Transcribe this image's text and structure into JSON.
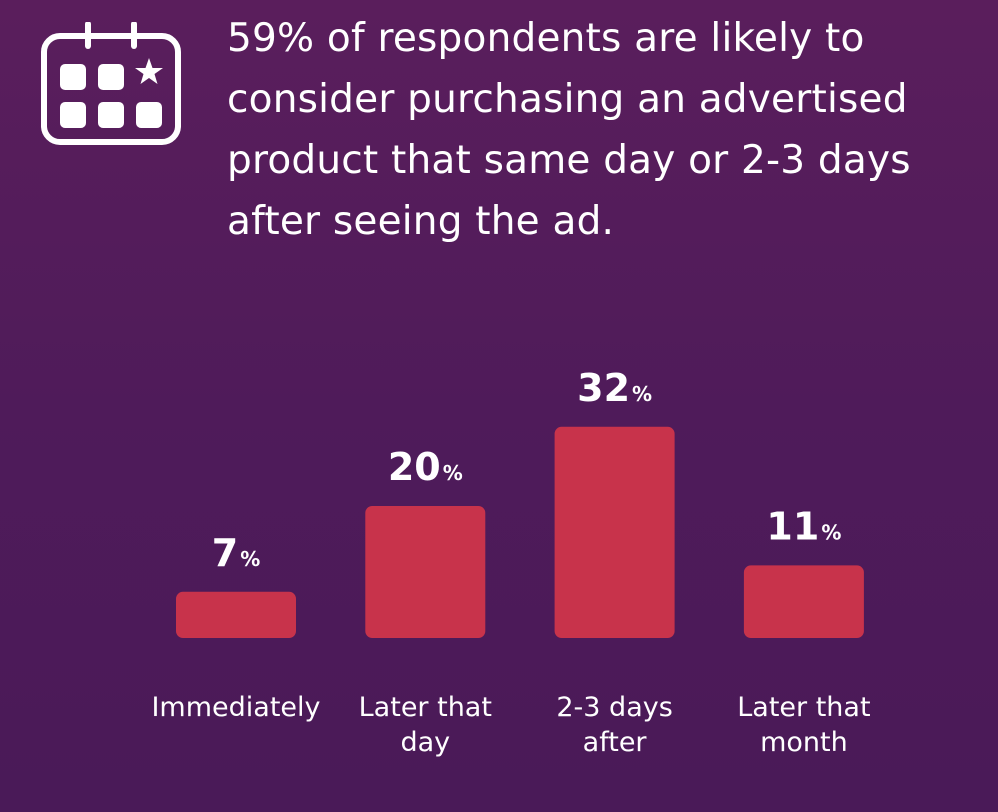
{
  "headline": "59% of respondents are likely to consider purchasing an advertised product that same day or 2-3 days after seeing the ad.",
  "icon": "calendar-star-icon",
  "colors": {
    "background": "#511c5b",
    "bar": "#c8334b",
    "text": "#ffffff"
  },
  "chart_data": {
    "type": "bar",
    "categories": [
      [
        "Immediately"
      ],
      [
        "Later that",
        "day"
      ],
      [
        "2-3 days",
        "after"
      ],
      [
        "Later that",
        "month"
      ]
    ],
    "values": [
      7,
      20,
      32,
      11
    ],
    "value_labels": [
      "7",
      "20",
      "32",
      "11"
    ],
    "unit": "%",
    "grid": false,
    "legend": "none"
  }
}
